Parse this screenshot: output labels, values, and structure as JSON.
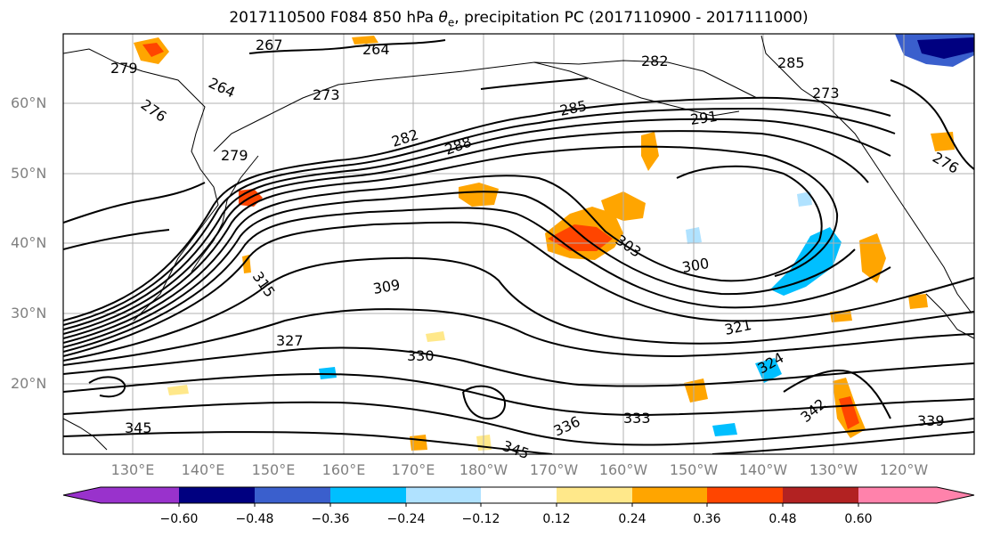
{
  "title_prefix": "2017110500 F084 850 hPa ",
  "title_theta": "θ",
  "title_sub": "e",
  "title_suffix": ", precipitation PC (2017110900 - 2017111000)",
  "lat_labels": [
    "60°N",
    "50°N",
    "40°N",
    "30°N",
    "20°N"
  ],
  "lon_labels": [
    "130°E",
    "140°E",
    "150°E",
    "160°E",
    "170°E",
    "180°W",
    "170°W",
    "160°W",
    "150°W",
    "140°W",
    "130°W",
    "120°W"
  ],
  "contour_labels": [
    "267",
    "264",
    "264",
    "273",
    "276",
    "279",
    "282",
    "282",
    "285",
    "288",
    "285",
    "291",
    "273",
    "276",
    "279",
    "309",
    "315",
    "303",
    "300",
    "321",
    "327",
    "330",
    "324",
    "342",
    "345",
    "336",
    "333",
    "345",
    "339"
  ],
  "colorbar": {
    "ticks": [
      "−0.60",
      "−0.48",
      "−0.36",
      "−0.24",
      "−0.12",
      "0.12",
      "0.24",
      "0.36",
      "0.48",
      "0.60"
    ],
    "colors": [
      "#9932cc",
      "#000080",
      "#3a5fcd",
      "#00bfff",
      "#b0e2ff",
      "#ffffff",
      "#ffe88a",
      "#ffa500",
      "#ff4500",
      "#b22222",
      "#ff82ab"
    ]
  }
}
